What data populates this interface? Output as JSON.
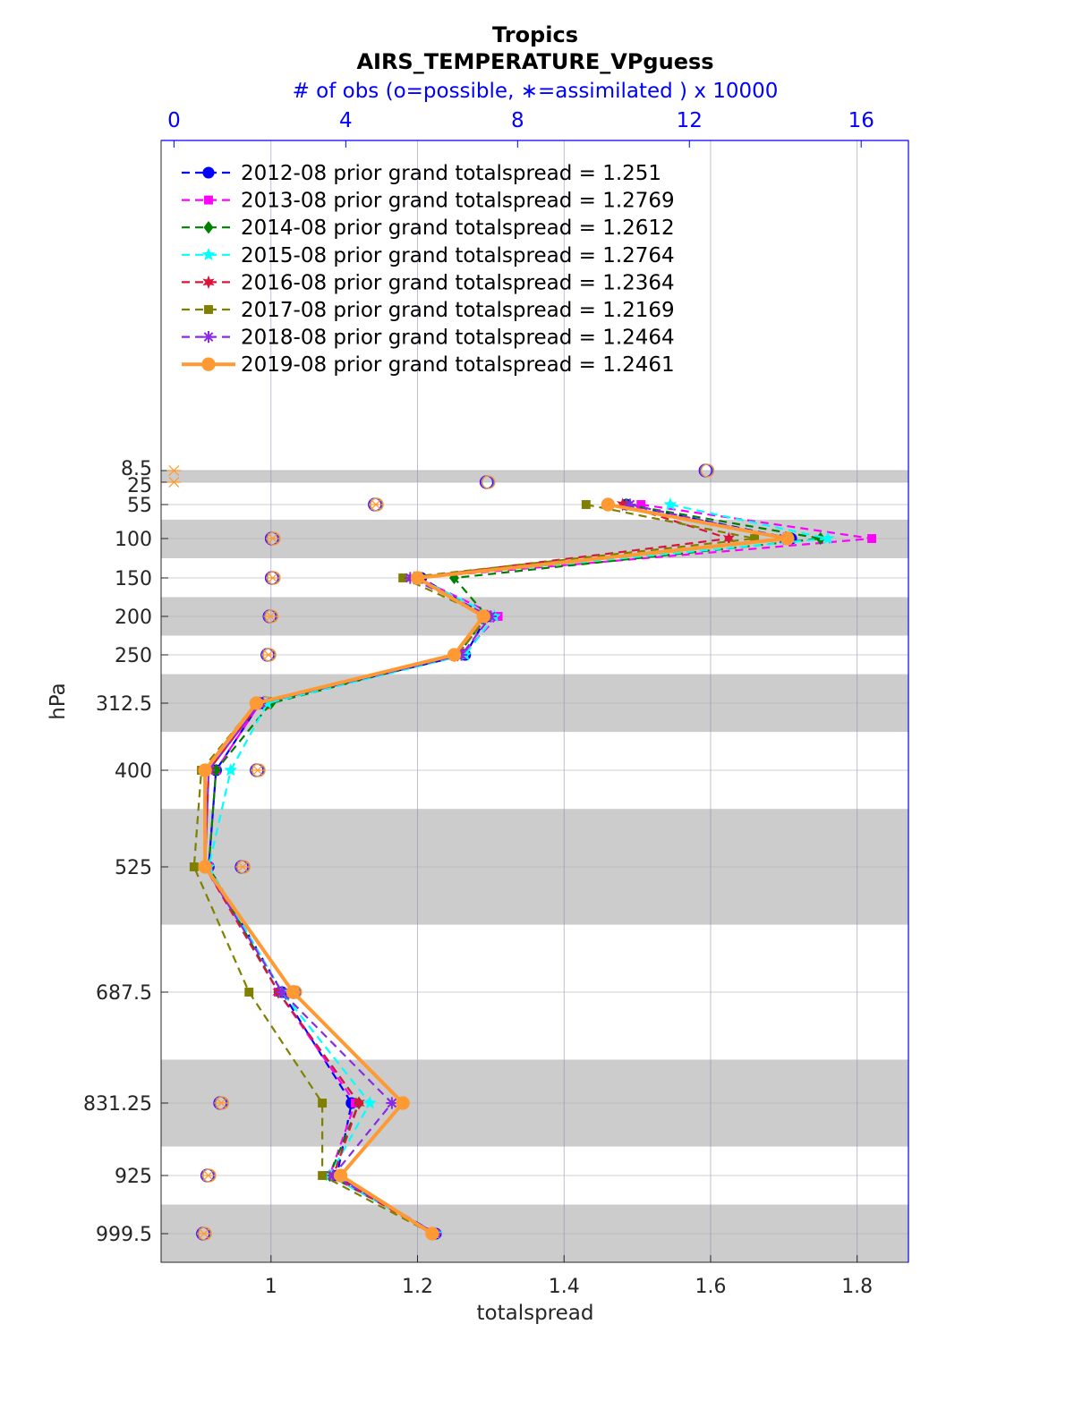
{
  "chart_data": {
    "type": "line",
    "title": "Tropics",
    "subtitle": "AIRS_TEMPERATURE_VPguess",
    "top_axis_label": "# of obs (o=possible, ∗=assimilated ) x 10000",
    "xlabel": "totalspread",
    "ylabel": "hPa",
    "xlim": [
      0.85,
      1.87
    ],
    "top_xlim": [
      -0.3,
      17.1
    ],
    "x_ticks": [
      "1",
      "1.2",
      "1.4",
      "1.6",
      "1.8"
    ],
    "top_ticks": [
      "0",
      "4",
      "8",
      "12",
      "16"
    ],
    "y_levels": [
      8.5,
      25,
      55,
      100,
      150,
      200,
      250,
      312.5,
      400,
      525,
      687.5,
      831.25,
      925,
      999.5
    ],
    "y_tick_labels": [
      "8.5",
      "25",
      "55",
      "100",
      "150",
      "200",
      "250",
      "312.5",
      "400",
      "525",
      "687.5",
      "831.25",
      "925",
      "999.5"
    ],
    "y_direction": "reversed",
    "grid": true,
    "legend_position": "top-left",
    "shaded_bands": [
      [
        8.5,
        25
      ],
      [
        75,
        125
      ],
      [
        175,
        225
      ],
      [
        275,
        350
      ],
      [
        450,
        600
      ],
      [
        775,
        887.5
      ],
      [
        962.25,
        1037
      ]
    ],
    "series": [
      {
        "name": "2012-08 prior grand totalspread = 1.251",
        "color": "#0000ff",
        "marker": "circle",
        "style": "dashed",
        "values": [
          null,
          null,
          1.485,
          1.71,
          1.205,
          1.295,
          1.265,
          0.985,
          0.925,
          0.915,
          1.015,
          1.11,
          1.09,
          1.225
        ]
      },
      {
        "name": "2013-08 prior grand totalspread = 1.2769",
        "color": "#ff00ff",
        "marker": "square",
        "style": "dashed",
        "values": [
          null,
          null,
          1.505,
          1.82,
          1.2,
          1.31,
          1.26,
          0.985,
          0.925,
          0.915,
          1.01,
          1.115,
          1.08,
          1.225
        ]
      },
      {
        "name": "2014-08 prior grand totalspread = 1.2612",
        "color": "#008000",
        "marker": "diamond",
        "style": "dashed",
        "values": [
          null,
          null,
          1.485,
          1.75,
          1.25,
          1.295,
          1.255,
          1.0,
          0.925,
          0.915,
          1.01,
          1.12,
          1.08,
          1.225
        ]
      },
      {
        "name": "2015-08 prior grand totalspread = 1.2764",
        "color": "#00ffff",
        "marker": "star",
        "style": "dashed",
        "values": [
          null,
          null,
          1.545,
          1.76,
          1.2,
          1.305,
          1.265,
          0.995,
          0.945,
          0.915,
          1.015,
          1.135,
          1.08,
          1.225
        ]
      },
      {
        "name": "2016-08 prior grand totalspread = 1.2364",
        "color": "#dc143c",
        "marker": "hexagram",
        "style": "dashed",
        "values": [
          null,
          null,
          1.48,
          1.625,
          1.195,
          1.295,
          1.255,
          0.985,
          0.915,
          0.91,
          1.01,
          1.12,
          1.085,
          1.22
        ]
      },
      {
        "name": "2017-08 prior grand totalspread = 1.2169",
        "color": "#808000",
        "marker": "square",
        "style": "dashed",
        "values": [
          null,
          null,
          1.43,
          1.66,
          1.18,
          1.295,
          1.255,
          0.98,
          0.905,
          0.895,
          0.97,
          1.07,
          1.07,
          1.22
        ]
      },
      {
        "name": "2018-08 prior grand totalspread = 1.2464",
        "color": "#8a2be2",
        "marker": "asterisk",
        "style": "dashed",
        "values": [
          null,
          null,
          1.49,
          1.7,
          1.19,
          1.3,
          1.26,
          0.985,
          0.915,
          0.91,
          1.015,
          1.165,
          1.085,
          1.225
        ]
      },
      {
        "name": "2019-08 prior grand totalspread = 1.2461",
        "color": "#ff9933",
        "marker": "circle",
        "style": "solid",
        "values": [
          null,
          null,
          1.46,
          1.705,
          1.2,
          1.29,
          1.25,
          0.98,
          0.91,
          0.91,
          1.03,
          1.18,
          1.095,
          1.22
        ]
      }
    ],
    "obs_possible": [
      12.4,
      7.3,
      4.7,
      2.3,
      2.3,
      2.25,
      2.2,
      2.15,
      1.95,
      1.6,
      2.8,
      1.1,
      0.8,
      0.7
    ],
    "obs_assimilated": [
      0,
      0,
      4.7,
      2.3,
      2.3,
      2.25,
      2.2,
      2.15,
      1.95,
      1.6,
      2.8,
      1.1,
      0.8,
      0.7
    ]
  }
}
